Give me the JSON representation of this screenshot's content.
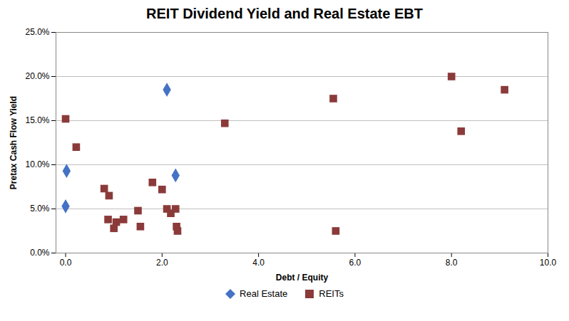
{
  "chart_data": {
    "type": "scatter",
    "title": "REIT Dividend Yield and Real Estate EBT",
    "xlabel": "Debt / Equity",
    "ylabel": "Pretax Cash Flow Yield",
    "xlim": [
      -0.2,
      10.0
    ],
    "ylim": [
      0,
      0.25
    ],
    "xticks": [
      {
        "value": 0.0,
        "label": "0.0"
      },
      {
        "value": 2.0,
        "label": "2.0"
      },
      {
        "value": 4.0,
        "label": "4.0"
      },
      {
        "value": 6.0,
        "label": "6.0"
      },
      {
        "value": 8.0,
        "label": "8.0"
      },
      {
        "value": 10.0,
        "label": "10.0"
      }
    ],
    "yticks": [
      {
        "value": 0.0,
        "label": "0.0%"
      },
      {
        "value": 0.05,
        "label": "5.0%"
      },
      {
        "value": 0.1,
        "label": "10.0%"
      },
      {
        "value": 0.15,
        "label": "15.0%"
      },
      {
        "value": 0.2,
        "label": "20.0%"
      },
      {
        "value": 0.25,
        "label": "25.0%"
      }
    ],
    "grid": "y",
    "legend": "bottom",
    "series": [
      {
        "name": "Real Estate",
        "color": "#4472C4",
        "marker": "diamond",
        "x": [
          0.02,
          0.0,
          2.1,
          2.28
        ],
        "values": [
          0.093,
          0.053,
          0.185,
          0.088
        ]
      },
      {
        "name": "REITs",
        "color": "#8B3A3A",
        "marker": "square",
        "x": [
          0.0,
          0.22,
          0.8,
          0.9,
          0.88,
          1.0,
          1.05,
          1.2,
          1.5,
          1.55,
          1.8,
          2.0,
          2.1,
          2.18,
          2.28,
          2.3,
          2.32,
          3.3,
          5.55,
          5.6,
          8.0,
          8.2,
          9.1
        ],
        "values": [
          0.152,
          0.12,
          0.073,
          0.065,
          0.038,
          0.028,
          0.035,
          0.038,
          0.048,
          0.03,
          0.08,
          0.072,
          0.05,
          0.045,
          0.05,
          0.03,
          0.025,
          0.147,
          0.175,
          0.025,
          0.2,
          0.138,
          0.185
        ]
      }
    ]
  }
}
